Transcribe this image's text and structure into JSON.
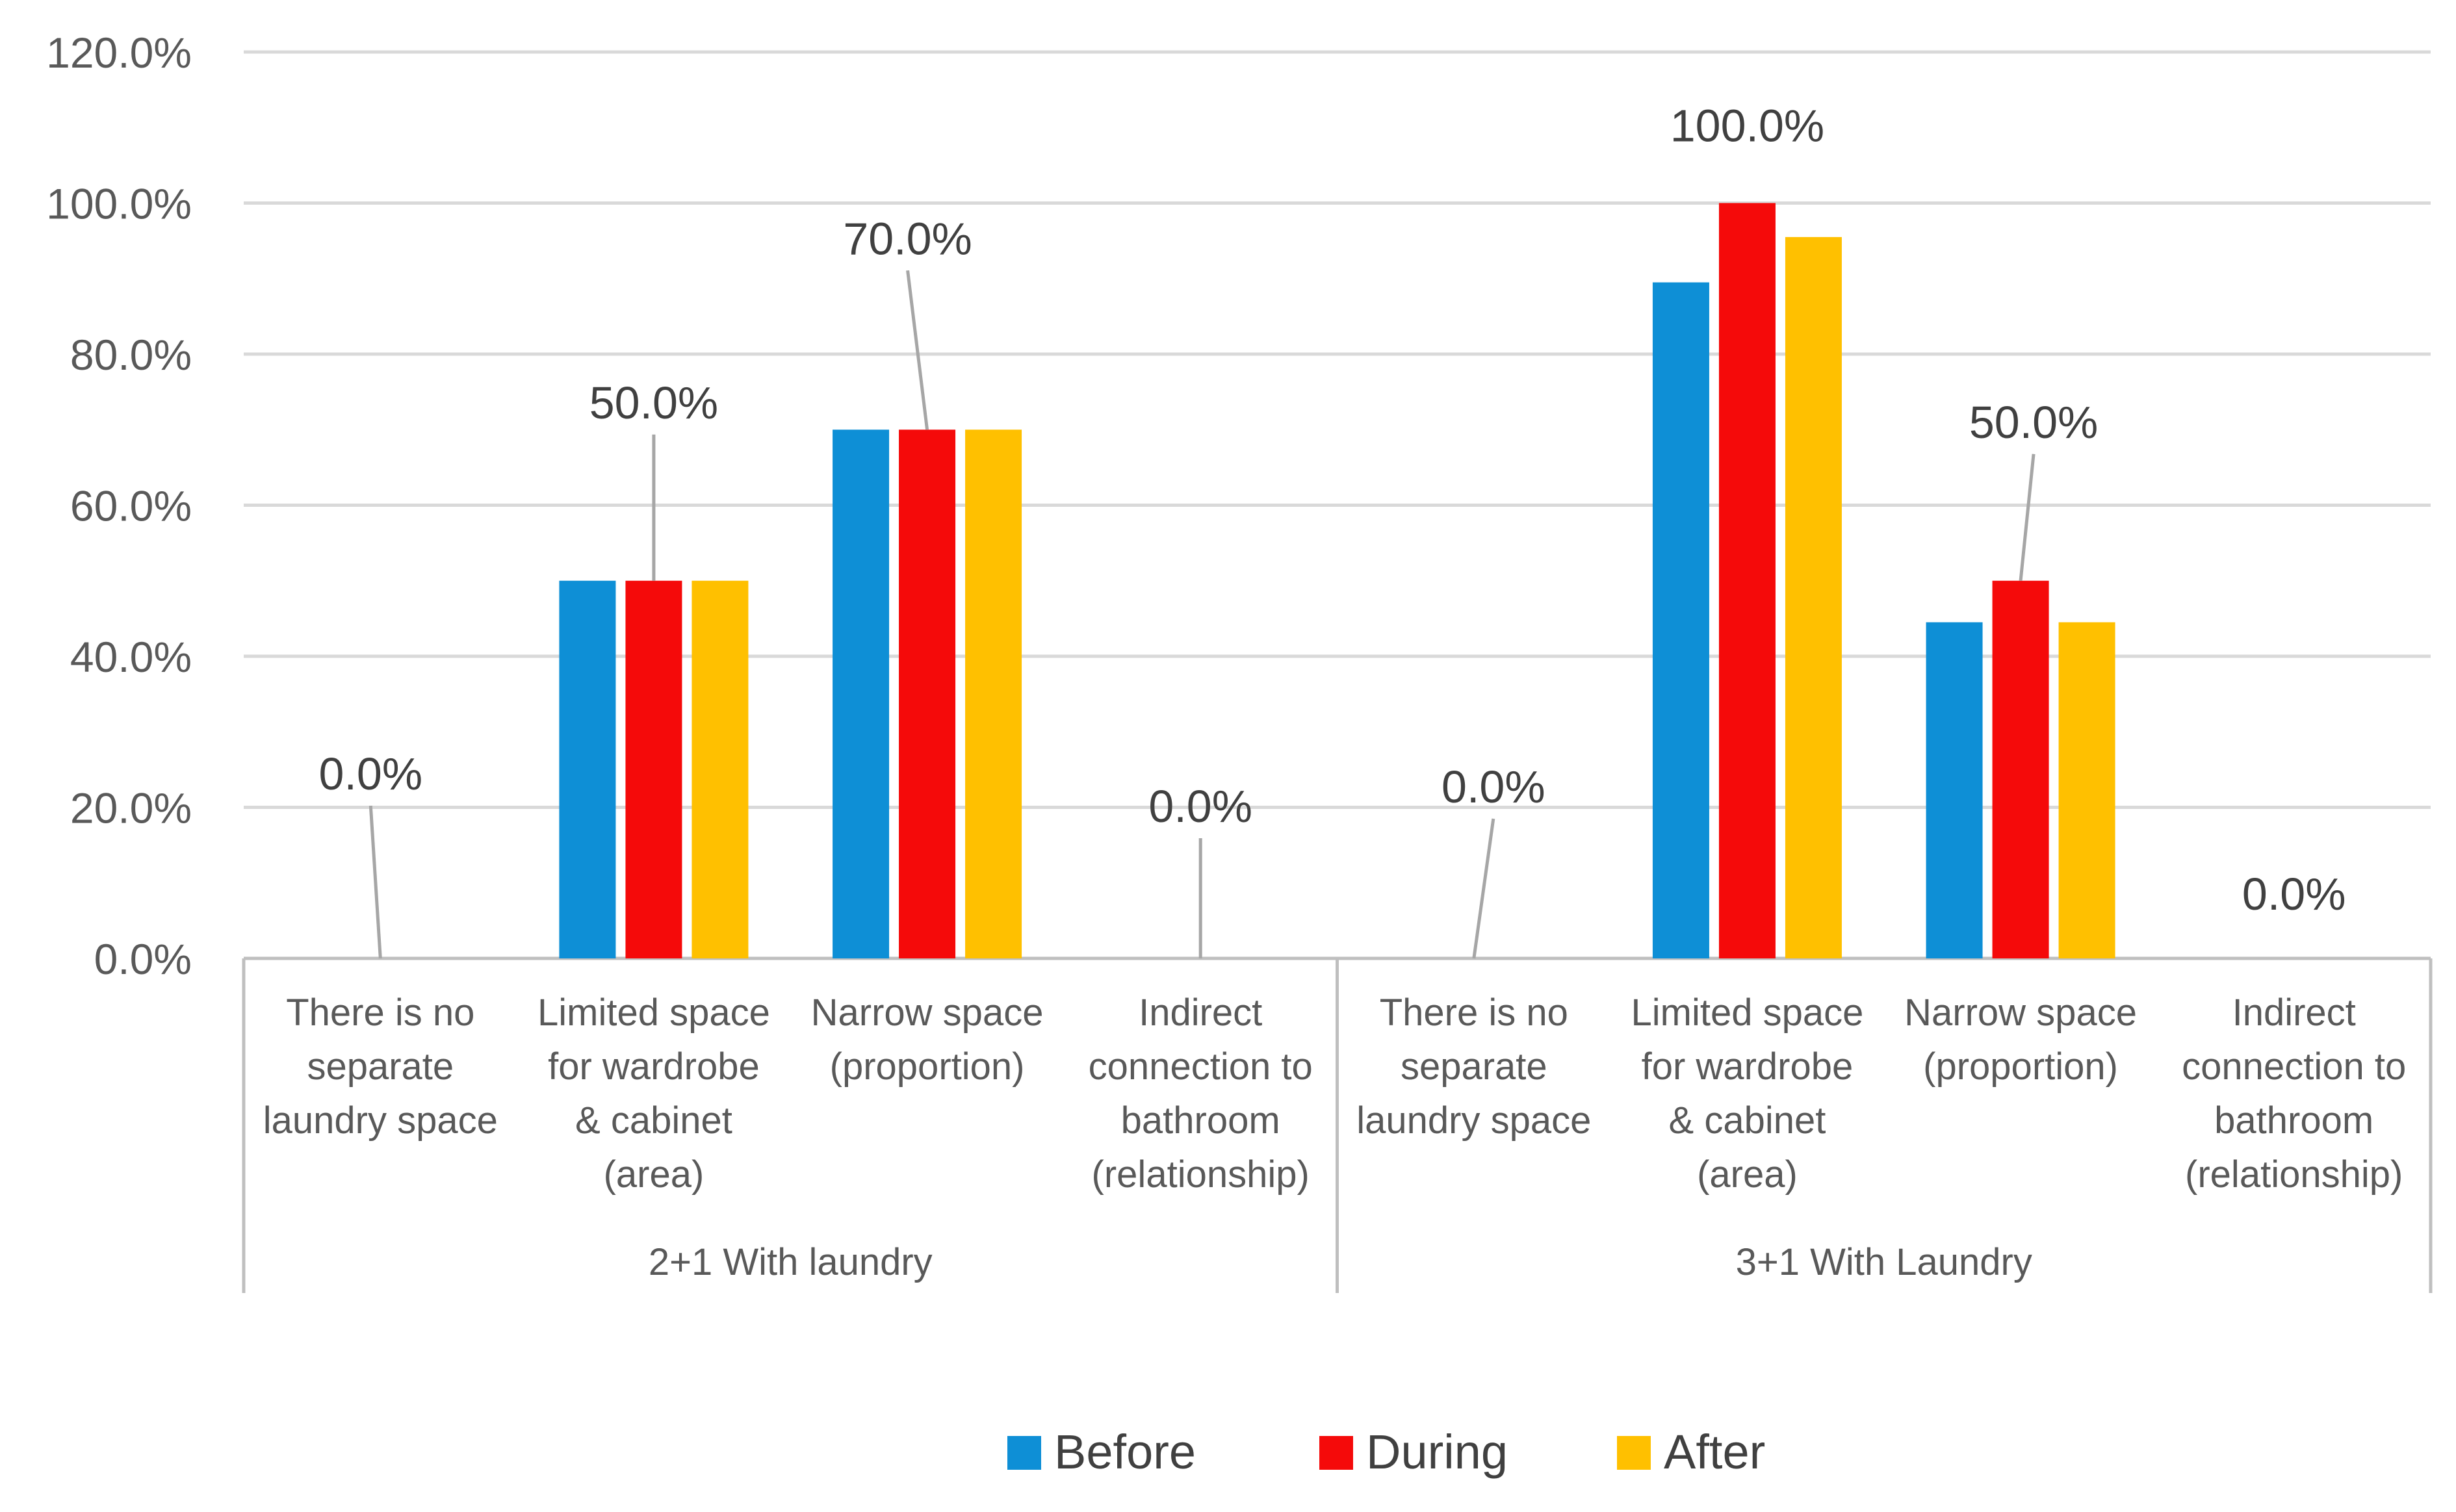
{
  "chart_data": {
    "type": "bar",
    "title": "",
    "xlabel": "",
    "ylabel": "",
    "ylim": [
      0,
      120
    ],
    "yticks": [
      "0.0%",
      "20.0%",
      "40.0%",
      "60.0%",
      "80.0%",
      "100.0%",
      "120.0%"
    ],
    "grid": true,
    "legend_position": "bottom",
    "groups": [
      {
        "label": "2+1 With laundry",
        "categories": [
          [
            "There is no",
            "separate",
            "laundry space"
          ],
          [
            "Limited space",
            "for wardrobe",
            "& cabinet",
            "(area)"
          ],
          [
            "Narrow space",
            "(proportion)"
          ],
          [
            "Indirect",
            "connection to",
            "bathroom",
            "(relationship)"
          ]
        ]
      },
      {
        "label": "3+1 With Laundry",
        "categories": [
          [
            "There is no",
            "separate",
            "laundry space"
          ],
          [
            "Limited space",
            "for wardrobe",
            "& cabinet",
            "(area)"
          ],
          [
            "Narrow space",
            "(proportion)"
          ],
          [
            "Indirect",
            "connection to",
            "bathroom",
            "(relationship)"
          ]
        ]
      }
    ],
    "series": [
      {
        "name": "Before",
        "color": "#0E8FD6",
        "values": [
          0,
          50,
          70,
          0,
          0,
          89.5,
          44.5,
          0
        ]
      },
      {
        "name": "During",
        "color": "#F50A0A",
        "values": [
          0,
          50,
          70,
          0,
          0,
          100,
          50,
          0
        ]
      },
      {
        "name": "After",
        "color": "#FFC000",
        "values": [
          0,
          50,
          70,
          0,
          0,
          95.5,
          44.5,
          0
        ]
      }
    ],
    "data_labels": [
      {
        "category_index": 0,
        "series": "During",
        "text": "0.0%"
      },
      {
        "category_index": 1,
        "series": "During",
        "text": "50.0%"
      },
      {
        "category_index": 2,
        "series": "During",
        "text": "70.0%"
      },
      {
        "category_index": 3,
        "series": "During",
        "text": "0.0%"
      },
      {
        "category_index": 4,
        "series": "During",
        "text": "0.0%"
      },
      {
        "category_index": 5,
        "series": "During",
        "text": "100.0%"
      },
      {
        "category_index": 6,
        "series": "During",
        "text": "50.0%"
      },
      {
        "category_index": 7,
        "series": "During",
        "text": "0.0%"
      }
    ]
  }
}
